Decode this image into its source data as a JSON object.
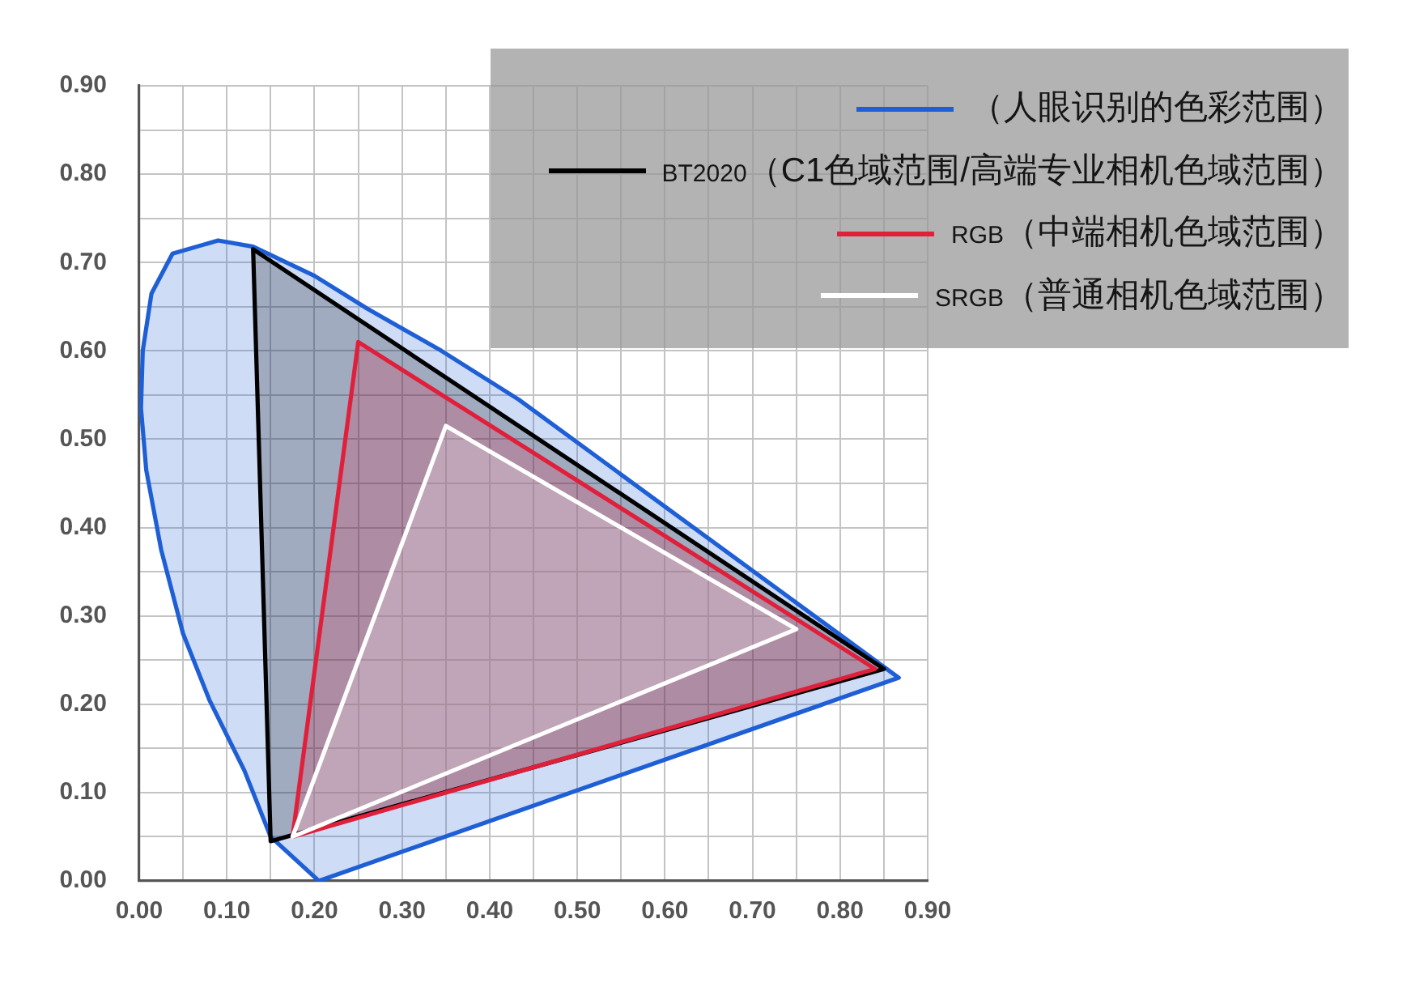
{
  "chart_data": {
    "type": "line",
    "series": [
      {
        "name": "（人眼识别的色彩范围）",
        "type": "area",
        "color": "#1f5fd6",
        "x": [
          0.205,
          0.15,
          0.12,
          0.08,
          0.05,
          0.025,
          0.008,
          0.002,
          0.004,
          0.014,
          0.038,
          0.09,
          0.13,
          0.2,
          0.26,
          0.345,
          0.433,
          0.867,
          0.205
        ],
        "values": [
          0,
          0.05,
          0.125,
          0.205,
          0.28,
          0.375,
          0.465,
          0.535,
          0.6,
          0.665,
          0.71,
          0.725,
          0.718,
          0.685,
          0.648,
          0.6,
          0.545,
          0.23,
          0
        ]
      },
      {
        "name": "BT2020（C1色域范围/高端专业相机色域范围）",
        "type": "area",
        "color": "#000000",
        "x": [
          0.13,
          0.85,
          0.15,
          0.13
        ],
        "values": [
          0.715,
          0.24,
          0.045,
          0.715
        ]
      },
      {
        "name": "RGB（中端相机色域范围）",
        "type": "area",
        "color": "#e0203a",
        "x": [
          0.25,
          0.84,
          0.175,
          0.25
        ],
        "values": [
          0.61,
          0.24,
          0.05,
          0.61
        ]
      },
      {
        "name": "SRGB（普通相机色域范围）",
        "type": "area",
        "color": "#ffffff",
        "x": [
          0.35,
          0.75,
          0.175,
          0.35
        ],
        "values": [
          0.515,
          0.285,
          0.05,
          0.515
        ]
      }
    ],
    "xlim": [
      0,
      0.9
    ],
    "ylim": [
      0,
      0.9
    ],
    "xticks": [
      {
        "value": 0,
        "label": "0.00"
      },
      {
        "value": 0.05,
        "label": null
      },
      {
        "value": 0.1,
        "label": "0.10"
      },
      {
        "value": 0.15,
        "label": null
      },
      {
        "value": 0.2,
        "label": "0.20"
      },
      {
        "value": 0.25,
        "label": null
      },
      {
        "value": 0.3,
        "label": "0.30"
      },
      {
        "value": 0.35,
        "label": null
      },
      {
        "value": 0.4,
        "label": "0.40"
      },
      {
        "value": 0.45,
        "label": null
      },
      {
        "value": 0.5,
        "label": "0.50"
      },
      {
        "value": 0.55,
        "label": null
      },
      {
        "value": 0.6,
        "label": "0.60"
      },
      {
        "value": 0.65,
        "label": null
      },
      {
        "value": 0.7,
        "label": "0.70"
      },
      {
        "value": 0.75,
        "label": null
      },
      {
        "value": 0.8,
        "label": "0.80"
      },
      {
        "value": 0.85,
        "label": null
      },
      {
        "value": 0.9,
        "label": "0.90"
      }
    ],
    "yticks": [
      {
        "value": 0,
        "label": "0.00"
      },
      {
        "value": 0.05,
        "label": null
      },
      {
        "value": 0.1,
        "label": "0.10"
      },
      {
        "value": 0.15,
        "label": null
      },
      {
        "value": 0.2,
        "label": "0.20"
      },
      {
        "value": 0.25,
        "label": null
      },
      {
        "value": 0.3,
        "label": "0.30"
      },
      {
        "value": 0.35,
        "label": null
      },
      {
        "value": 0.4,
        "label": "0.40"
      },
      {
        "value": 0.45,
        "label": null
      },
      {
        "value": 0.5,
        "label": "0.50"
      },
      {
        "value": 0.55,
        "label": null
      },
      {
        "value": 0.6,
        "label": "0.60"
      },
      {
        "value": 0.65,
        "label": null
      },
      {
        "value": 0.7,
        "label": "0.70"
      },
      {
        "value": 0.75,
        "label": null
      },
      {
        "value": 0.8,
        "label": "0.80"
      },
      {
        "value": 0.85,
        "label": null
      },
      {
        "value": 0.9,
        "label": "0.90"
      }
    ],
    "grid": true,
    "legend": "top right"
  }
}
